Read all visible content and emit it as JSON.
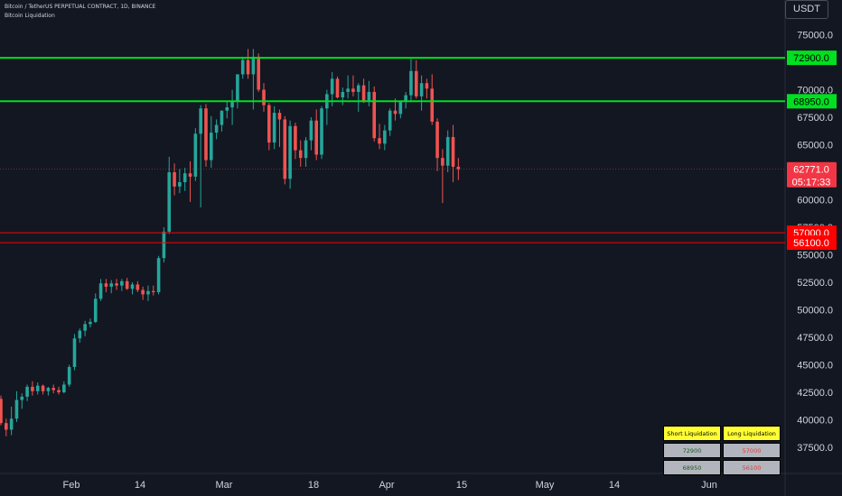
{
  "header": {
    "symbol_line": "Bitcoin / TetherUS PERPETUAL CONTRACT, 1D, BINANCE",
    "indicator_name": "Bitcoin Liquidation"
  },
  "currency_button": "USDT",
  "colors": {
    "background": "#131722",
    "up": "#26a69a",
    "down": "#ef5350",
    "short_level": "#00e020",
    "long_level": "#ff0000",
    "axis_text": "#d1d4dc"
  },
  "liquidation_table": {
    "headers": [
      "Short Liquidation",
      "Long Liquidation"
    ],
    "rows": [
      [
        "72900",
        "57000"
      ],
      [
        "68950",
        "56100"
      ]
    ]
  },
  "chart_data": {
    "type": "candlestick",
    "y_axis": {
      "ticks": [
        "75000.0",
        "70000.0",
        "67500.0",
        "65000.0",
        "60000.0",
        "57500.0",
        "55000.0",
        "52500.0",
        "50000.0",
        "47500.0",
        "45000.0",
        "42500.0",
        "40000.0",
        "37500.0"
      ],
      "ylim": [
        35700,
        76800
      ]
    },
    "x_axis": {
      "tick_labels": [
        "Feb",
        "14",
        "Mar",
        "18",
        "Apr",
        "15",
        "May",
        "14",
        "Jun"
      ]
    },
    "horizontal_levels": [
      {
        "value": 72900,
        "label": "72900.0",
        "color": "#00e020",
        "kind": "short"
      },
      {
        "value": 68950,
        "label": "68950.0",
        "color": "#00e020",
        "kind": "short"
      },
      {
        "value": 57000,
        "label": "57000.0",
        "color": "#ff0000",
        "kind": "long"
      },
      {
        "value": 56100,
        "label": "56100.0",
        "color": "#ff0000",
        "kind": "long"
      }
    ],
    "last_price": {
      "value": 62771,
      "label": "62771.0",
      "countdown": "05:17:33"
    },
    "candles": [
      [
        41900,
        42200,
        39500,
        39700
      ],
      [
        39700,
        40100,
        38500,
        39100
      ],
      [
        39100,
        41200,
        38600,
        40100
      ],
      [
        40100,
        42600,
        39800,
        41800
      ],
      [
        41800,
        42400,
        41000,
        42100
      ],
      [
        42100,
        43200,
        41700,
        43000
      ],
      [
        43000,
        43500,
        42200,
        42600
      ],
      [
        42600,
        43400,
        42300,
        43100
      ],
      [
        43100,
        43200,
        42300,
        42600
      ],
      [
        42600,
        43000,
        42200,
        42900
      ],
      [
        42900,
        43200,
        42400,
        42700
      ],
      [
        42700,
        43000,
        42300,
        42500
      ],
      [
        42500,
        43500,
        42400,
        43200
      ],
      [
        43200,
        45000,
        43000,
        44800
      ],
      [
        44800,
        47800,
        44500,
        47400
      ],
      [
        47400,
        48300,
        47000,
        48100
      ],
      [
        48100,
        49000,
        47600,
        48700
      ],
      [
        48700,
        49200,
        48400,
        48900
      ],
      [
        48900,
        51500,
        48800,
        51000
      ],
      [
        51000,
        52800,
        50800,
        52400
      ],
      [
        52400,
        52800,
        51600,
        52100
      ],
      [
        52100,
        52700,
        51500,
        52400
      ],
      [
        52400,
        52800,
        51800,
        52200
      ],
      [
        52200,
        52800,
        51700,
        52600
      ],
      [
        52600,
        52900,
        51800,
        51900
      ],
      [
        51900,
        52500,
        51400,
        52300
      ],
      [
        52300,
        52600,
        51600,
        51800
      ],
      [
        51800,
        52100,
        50900,
        51400
      ],
      [
        51400,
        52200,
        50800,
        51700
      ],
      [
        51700,
        52200,
        51300,
        51600
      ],
      [
        51600,
        54900,
        51400,
        54700
      ],
      [
        54700,
        57500,
        54300,
        57100
      ],
      [
        57100,
        63900,
        56900,
        62500
      ],
      [
        62500,
        63300,
        60400,
        61200
      ],
      [
        61200,
        62800,
        60600,
        61600
      ],
      [
        61600,
        62900,
        60800,
        62400
      ],
      [
        62400,
        63500,
        59800,
        62100
      ],
      [
        62100,
        66500,
        61700,
        66000
      ],
      [
        66000,
        68600,
        59300,
        68300
      ],
      [
        68300,
        68700,
        63000,
        63600
      ],
      [
        63600,
        67600,
        62900,
        66100
      ],
      [
        66100,
        67300,
        65500,
        66800
      ],
      [
        66800,
        68100,
        66200,
        68100
      ],
      [
        68100,
        69000,
        67400,
        68400
      ],
      [
        68400,
        70000,
        66800,
        69000
      ],
      [
        69000,
        71400,
        68300,
        71400
      ],
      [
        71400,
        73000,
        71000,
        72700
      ],
      [
        72700,
        73700,
        71000,
        71400
      ],
      [
        71400,
        73700,
        68200,
        73000
      ],
      [
        73000,
        73300,
        69800,
        70000
      ],
      [
        70000,
        70600,
        68000,
        68600
      ],
      [
        68600,
        68800,
        64500,
        65200
      ],
      [
        65200,
        68500,
        64600,
        67900
      ],
      [
        67900,
        68200,
        64800,
        67300
      ],
      [
        67300,
        67600,
        61400,
        61900
      ],
      [
        61900,
        67200,
        61000,
        66700
      ],
      [
        66700,
        67000,
        63700,
        64500
      ],
      [
        64500,
        65400,
        63000,
        63800
      ],
      [
        63800,
        65700,
        63000,
        65400
      ],
      [
        65400,
        67500,
        64500,
        67200
      ],
      [
        67200,
        68200,
        63600,
        64100
      ],
      [
        64100,
        68500,
        63700,
        68300
      ],
      [
        68300,
        70000,
        66800,
        69600
      ],
      [
        69600,
        71600,
        68500,
        71000
      ],
      [
        71000,
        71200,
        69200,
        69300
      ],
      [
        69300,
        70200,
        68600,
        69800
      ],
      [
        69800,
        71300,
        69200,
        70100
      ],
      [
        70100,
        71300,
        69400,
        69800
      ],
      [
        69800,
        70600,
        68000,
        70400
      ],
      [
        70400,
        71000,
        68800,
        68900
      ],
      [
        68900,
        70800,
        68500,
        69800
      ],
      [
        69800,
        70300,
        65300,
        65600
      ],
      [
        65600,
        66900,
        64600,
        65100
      ],
      [
        65100,
        66800,
        64500,
        66300
      ],
      [
        66300,
        68300,
        65800,
        68100
      ],
      [
        68100,
        69200,
        67200,
        67800
      ],
      [
        67800,
        68900,
        67400,
        68900
      ],
      [
        68900,
        69800,
        68300,
        69500
      ],
      [
        69500,
        72800,
        68900,
        71700
      ],
      [
        71700,
        72700,
        69200,
        69400
      ],
      [
        69400,
        71300,
        68100,
        70600
      ],
      [
        70600,
        71000,
        69200,
        70100
      ],
      [
        70100,
        71400,
        66800,
        67100
      ],
      [
        67100,
        67400,
        62600,
        63800
      ],
      [
        63800,
        64600,
        59700,
        63100
      ],
      [
        63100,
        66300,
        62500,
        65700
      ],
      [
        65700,
        66800,
        61600,
        63000
      ],
      [
        63000,
        63800,
        61800,
        62771
      ]
    ]
  }
}
